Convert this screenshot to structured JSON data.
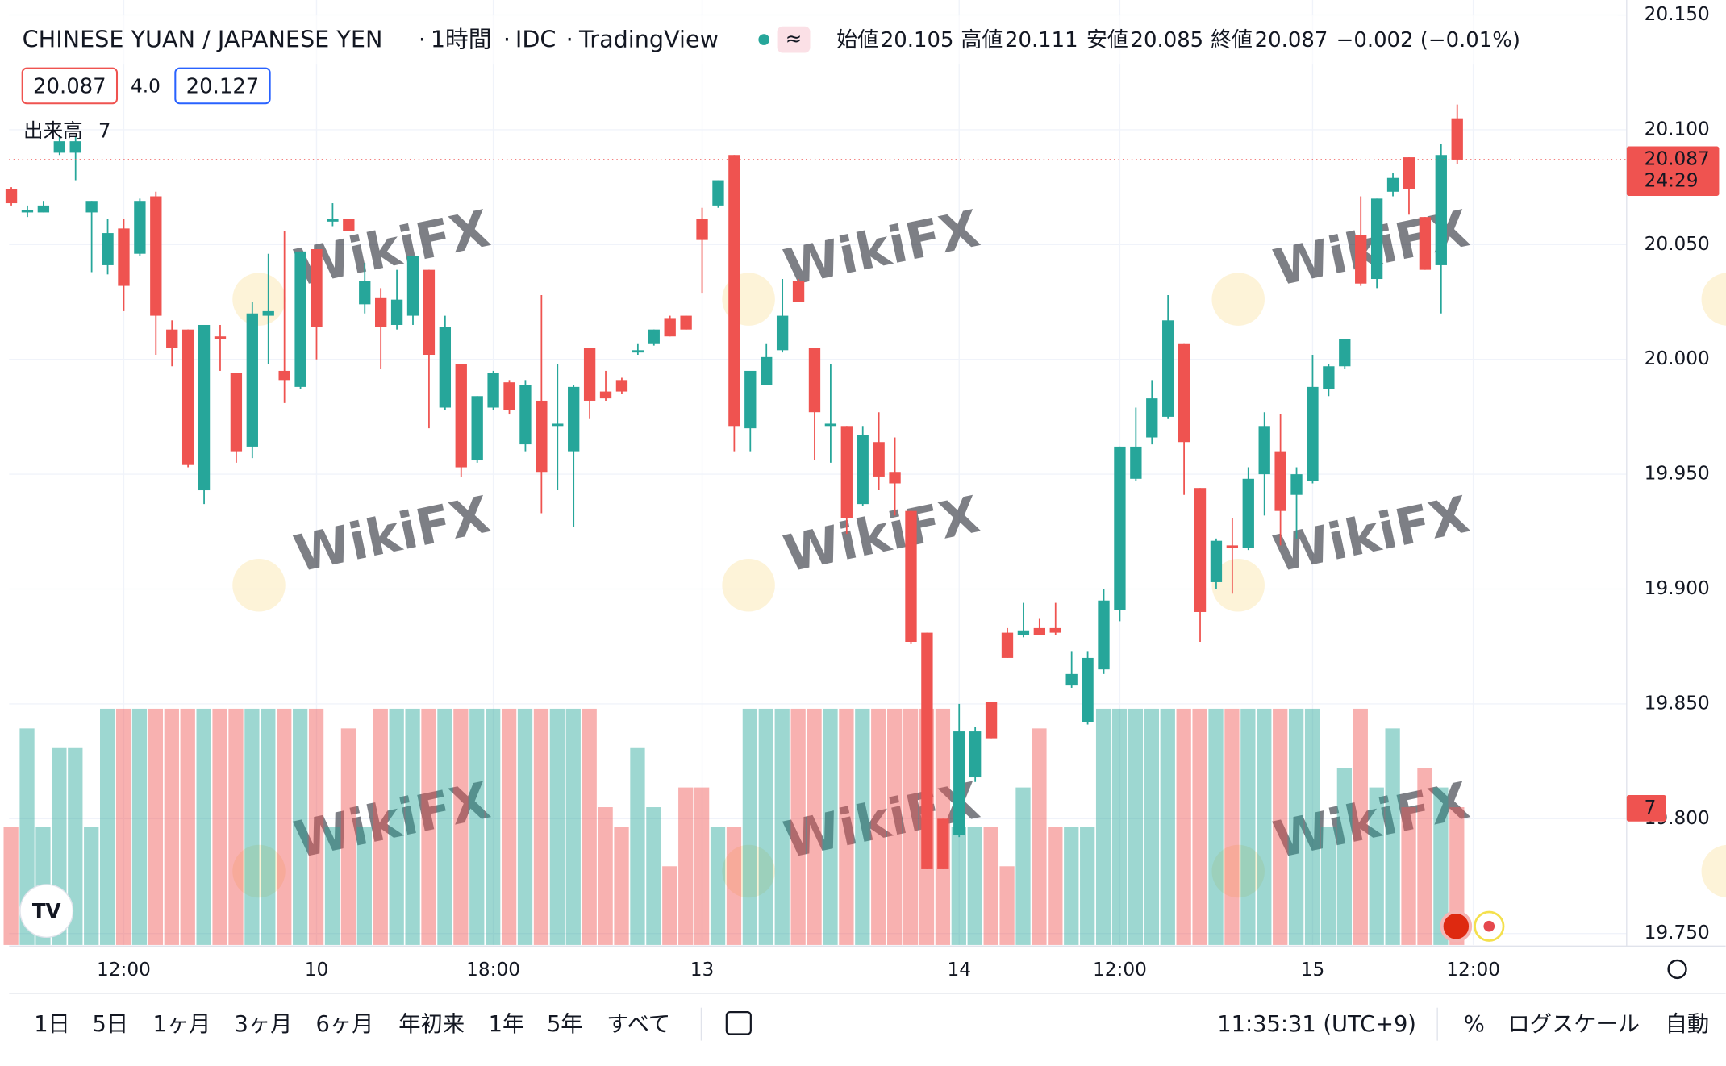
{
  "chart_data": {
    "type": "candlestick",
    "title": "CHINESE YUAN / JAPANESE YEN",
    "interval": "1時間",
    "source": "IDC",
    "platform": "TradingView",
    "legend": {
      "open_label": "始値",
      "high_label": "高値",
      "low_label": "安値",
      "close_label": "終値",
      "change": "−0.002 (−0.01%)"
    },
    "quote": {
      "spread": "4.0",
      "ask": "20.127"
    },
    "volume_label": "出来高",
    "countdown": "24:29",
    "watermark": "WikiFX",
    "up_color": "#26a69a",
    "down_color": "#ef5350",
    "categories": [
      null,
      null,
      null,
      null,
      null,
      null,
      null,
      "12:00",
      null,
      null,
      null,
      null,
      null,
      null,
      null,
      null,
      null,
      null,
      null,
      "10",
      null,
      null,
      null,
      null,
      null,
      null,
      null,
      null,
      null,
      null,
      "18:00",
      null,
      null,
      null,
      null,
      null,
      null,
      null,
      null,
      null,
      null,
      null,
      null,
      "13",
      null,
      null,
      null,
      null,
      null,
      null,
      null,
      null,
      null,
      null,
      null,
      null,
      null,
      null,
      null,
      "14",
      null,
      null,
      null,
      null,
      null,
      null,
      null,
      null,
      null,
      "12:00",
      null,
      null,
      null,
      null,
      null,
      null,
      null,
      null,
      null,
      null,
      null,
      "15",
      null,
      null,
      null,
      null,
      null,
      null,
      null,
      null,
      null,
      "12:00"
    ],
    "open": [
      20.074,
      20.064,
      20.064,
      20.09,
      20.09,
      20.064,
      20.041,
      20.057,
      20.046,
      20.071,
      20.013,
      20.013,
      19.943,
      20.01,
      19.994,
      19.962,
      20.019,
      19.995,
      19.988,
      20.048,
      20.06,
      20.061,
      20.024,
      20.027,
      20.015,
      20.019,
      20.039,
      19.979,
      19.998,
      19.956,
      19.979,
      19.99,
      19.963,
      19.982,
      19.971,
      19.96,
      20.005,
      19.986,
      19.991,
      20.003,
      20.007,
      20.018,
      20.019,
      20.061,
      20.067,
      20.089,
      19.97,
      19.989,
      20.004,
      20.034,
      20.005,
      19.971,
      19.971,
      19.937,
      19.964,
      19.951,
      19.934,
      19.881,
      19.8,
      19.793,
      19.818,
      19.851,
      19.881,
      19.88,
      19.883,
      19.883,
      19.858,
      19.842,
      19.865,
      19.891,
      19.948,
      19.966,
      19.975,
      20.007,
      19.944,
      19.903,
      19.919,
      19.918,
      19.95,
      19.96,
      19.941,
      19.947,
      19.987,
      19.997,
      20.054,
      20.035,
      20.073,
      20.088,
      20.062,
      20.041,
      20.105,
      null
    ],
    "high": [
      20.075,
      20.067,
      20.069,
      20.097,
      20.097,
      20.069,
      20.061,
      20.061,
      20.07,
      20.073,
      20.017,
      20.013,
      20.015,
      20.015,
      19.994,
      20.025,
      20.046,
      20.056,
      20.047,
      20.048,
      20.068,
      20.061,
      20.042,
      20.031,
      20.039,
      20.045,
      20.039,
      20.019,
      19.998,
      19.984,
      19.995,
      19.991,
      19.991,
      20.028,
      19.998,
      19.989,
      20.005,
      19.995,
      19.992,
      20.007,
      20.013,
      20.019,
      20.019,
      20.066,
      20.078,
      20.089,
      19.995,
      20.007,
      20.035,
      20.035,
      20.005,
      19.998,
      19.971,
      19.971,
      19.977,
      19.966,
      19.934,
      19.881,
      19.8,
      19.85,
      19.84,
      19.851,
      19.883,
      19.894,
      19.887,
      19.894,
      19.873,
      19.873,
      19.9,
      19.962,
      19.979,
      19.991,
      20.028,
      20.007,
      19.944,
      19.922,
      19.931,
      19.953,
      19.977,
      19.976,
      19.953,
      20.002,
      19.998,
      20.009,
      20.071,
      20.07,
      20.081,
      20.088,
      20.062,
      20.094,
      20.111,
      null
    ],
    "low": [
      20.067,
      20.062,
      20.064,
      20.089,
      20.078,
      20.038,
      20.037,
      20.021,
      20.045,
      20.002,
      19.997,
      19.953,
      19.937,
      19.995,
      19.955,
      19.957,
      19.998,
      19.981,
      19.987,
      20.0,
      20.058,
      20.056,
      20.02,
      19.996,
      20.013,
      20.015,
      19.97,
      19.978,
      19.949,
      19.955,
      19.978,
      19.976,
      19.96,
      19.933,
      19.943,
      19.927,
      19.974,
      19.982,
      19.985,
      20.002,
      20.006,
      20.01,
      20.013,
      20.029,
      20.066,
      19.96,
      19.96,
      19.989,
      20.003,
      20.025,
      19.956,
      19.955,
      19.924,
      19.936,
      19.943,
      19.932,
      19.876,
      19.778,
      19.778,
      19.792,
      19.816,
      19.835,
      19.87,
      19.879,
      19.88,
      19.88,
      19.857,
      19.841,
      19.863,
      19.886,
      19.947,
      19.963,
      19.974,
      19.941,
      19.877,
      19.9,
      19.898,
      19.917,
      19.932,
      19.919,
      19.922,
      19.946,
      19.984,
      19.996,
      20.032,
      20.031,
      20.071,
      20.063,
      20.039,
      20.02,
      20.085,
      null
    ],
    "close": [
      20.068,
      20.065,
      20.067,
      20.095,
      20.095,
      20.069,
      20.055,
      20.032,
      20.069,
      20.019,
      20.005,
      19.954,
      20.015,
      20.009,
      19.96,
      20.02,
      20.021,
      19.991,
      20.047,
      20.014,
      20.061,
      20.056,
      20.034,
      20.014,
      20.026,
      20.045,
      20.002,
      20.014,
      19.953,
      19.984,
      19.994,
      19.978,
      19.989,
      19.951,
      19.972,
      19.988,
      19.982,
      19.983,
      19.986,
      20.004,
      20.013,
      20.01,
      20.013,
      20.052,
      20.078,
      19.971,
      19.995,
      20.001,
      20.019,
      20.025,
      19.977,
      19.972,
      19.931,
      19.967,
      19.949,
      19.946,
      19.877,
      19.778,
      19.778,
      19.838,
      19.838,
      19.835,
      19.87,
      19.882,
      19.88,
      19.881,
      19.863,
      19.87,
      19.895,
      19.962,
      19.962,
      19.983,
      20.017,
      19.964,
      19.89,
      19.921,
      19.918,
      19.948,
      19.971,
      19.934,
      19.95,
      19.988,
      19.997,
      20.009,
      20.033,
      20.07,
      20.079,
      20.074,
      20.039,
      20.089,
      20.087,
      null
    ],
    "volume": [
      6,
      11,
      6,
      10,
      10,
      6,
      12,
      12,
      12,
      12,
      12,
      12,
      12,
      12,
      12,
      12,
      12,
      12,
      12,
      12,
      6,
      11,
      6,
      12,
      12,
      12,
      12,
      12,
      12,
      12,
      12,
      12,
      12,
      12,
      12,
      12,
      12,
      7,
      6,
      10,
      7,
      4,
      8,
      8,
      6,
      6,
      12,
      12,
      12,
      12,
      12,
      12,
      12,
      12,
      12,
      12,
      12,
      12,
      12,
      6,
      6,
      6,
      4,
      8,
      11,
      6,
      6,
      6,
      12,
      12,
      12,
      12,
      12,
      12,
      12,
      12,
      12,
      12,
      12,
      12,
      12,
      12,
      6,
      9,
      12,
      8,
      11,
      7,
      9,
      8,
      7,
      null
    ],
    "ylim": [
      19.745,
      20.1565
    ],
    "yticks": [
      {
        "value": 19.75,
        "label": "19.750"
      },
      {
        "value": 19.8,
        "label": "19.800"
      },
      {
        "value": 19.85,
        "label": "19.850"
      },
      {
        "value": 19.9,
        "label": "19.900"
      },
      {
        "value": 19.95,
        "label": "19.950"
      },
      {
        "value": 20,
        "label": "20.000"
      },
      {
        "value": 20.05,
        "label": "20.050"
      },
      {
        "value": 20.1,
        "label": "20.100"
      },
      {
        "value": 20.15,
        "label": "20.150"
      }
    ],
    "volume_ylim": [
      0,
      48
    ],
    "grid": true
  },
  "toolbar": {
    "ranges": [
      "1日",
      "5日",
      "1ヶ月",
      "3ヶ月",
      "6ヶ月",
      "年初来",
      "1年",
      "5年",
      "すべて"
    ],
    "clock": "11:35:31 (UTC+9)",
    "percent": "%",
    "log": "ログスケール",
    "auto": "自動"
  }
}
